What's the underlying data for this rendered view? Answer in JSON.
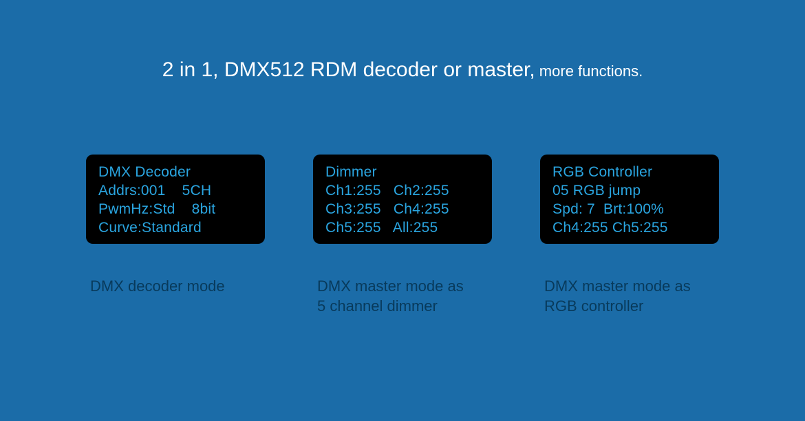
{
  "colors": {
    "background": "#1b6ca8",
    "display_background": "#000000",
    "display_text": "#2aa5e0",
    "title_text": "#ffffff",
    "caption_text": "#083a5b"
  },
  "title": {
    "main": "2 in 1, DMX512 RDM decoder or master,",
    "sub": " more functions."
  },
  "cards": [
    {
      "display_lines": [
        "DMX Decoder",
        "Addrs:001    5CH",
        "PwmHz:Std    8bit",
        "Curve:Standard"
      ],
      "caption_line1": "DMX decoder mode",
      "caption_line2": ""
    },
    {
      "display_lines": [
        "Dimmer",
        "Ch1:255   Ch2:255",
        "Ch3:255   Ch4:255",
        "Ch5:255   All:255"
      ],
      "caption_line1": "DMX master mode as",
      "caption_line2": "5 channel dimmer"
    },
    {
      "display_lines": [
        "RGB Controller",
        "05 RGB jump",
        "Spd: 7  Brt:100%",
        "Ch4:255 Ch5:255"
      ],
      "caption_line1": "DMX master mode as",
      "caption_line2": "RGB controller"
    }
  ]
}
